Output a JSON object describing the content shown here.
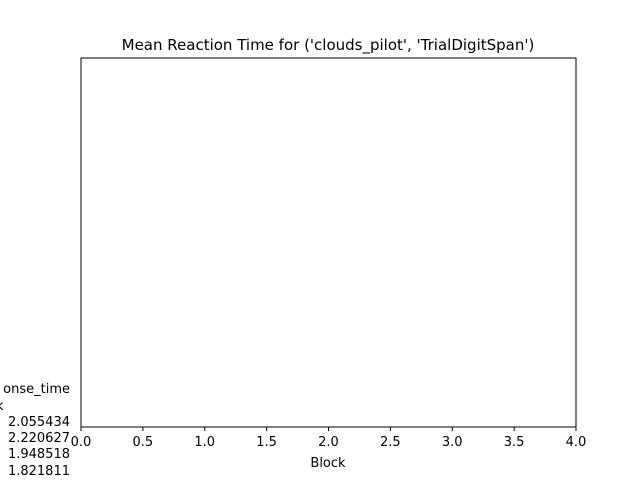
{
  "chart_data": {
    "type": "line",
    "title": "Mean Reaction Time for ('clouds_pilot', 'TrialDigitSpan')",
    "xlabel": "Block",
    "ylabel_text_lines": [
      "onse_time",
      "k",
      "2.055434",
      "2.220627",
      "1.948518",
      "1.821811"
    ],
    "x_ticks": [
      0.0,
      0.5,
      1.0,
      1.5,
      2.0,
      2.5,
      3.0,
      3.5,
      4.0
    ],
    "x_tick_labels": [
      "0.0",
      "0.5",
      "1.0",
      "1.5",
      "2.0",
      "2.5",
      "3.0",
      "3.5",
      "4.0"
    ],
    "xlim": [
      0.0,
      4.0
    ],
    "grid": false,
    "series": []
  }
}
